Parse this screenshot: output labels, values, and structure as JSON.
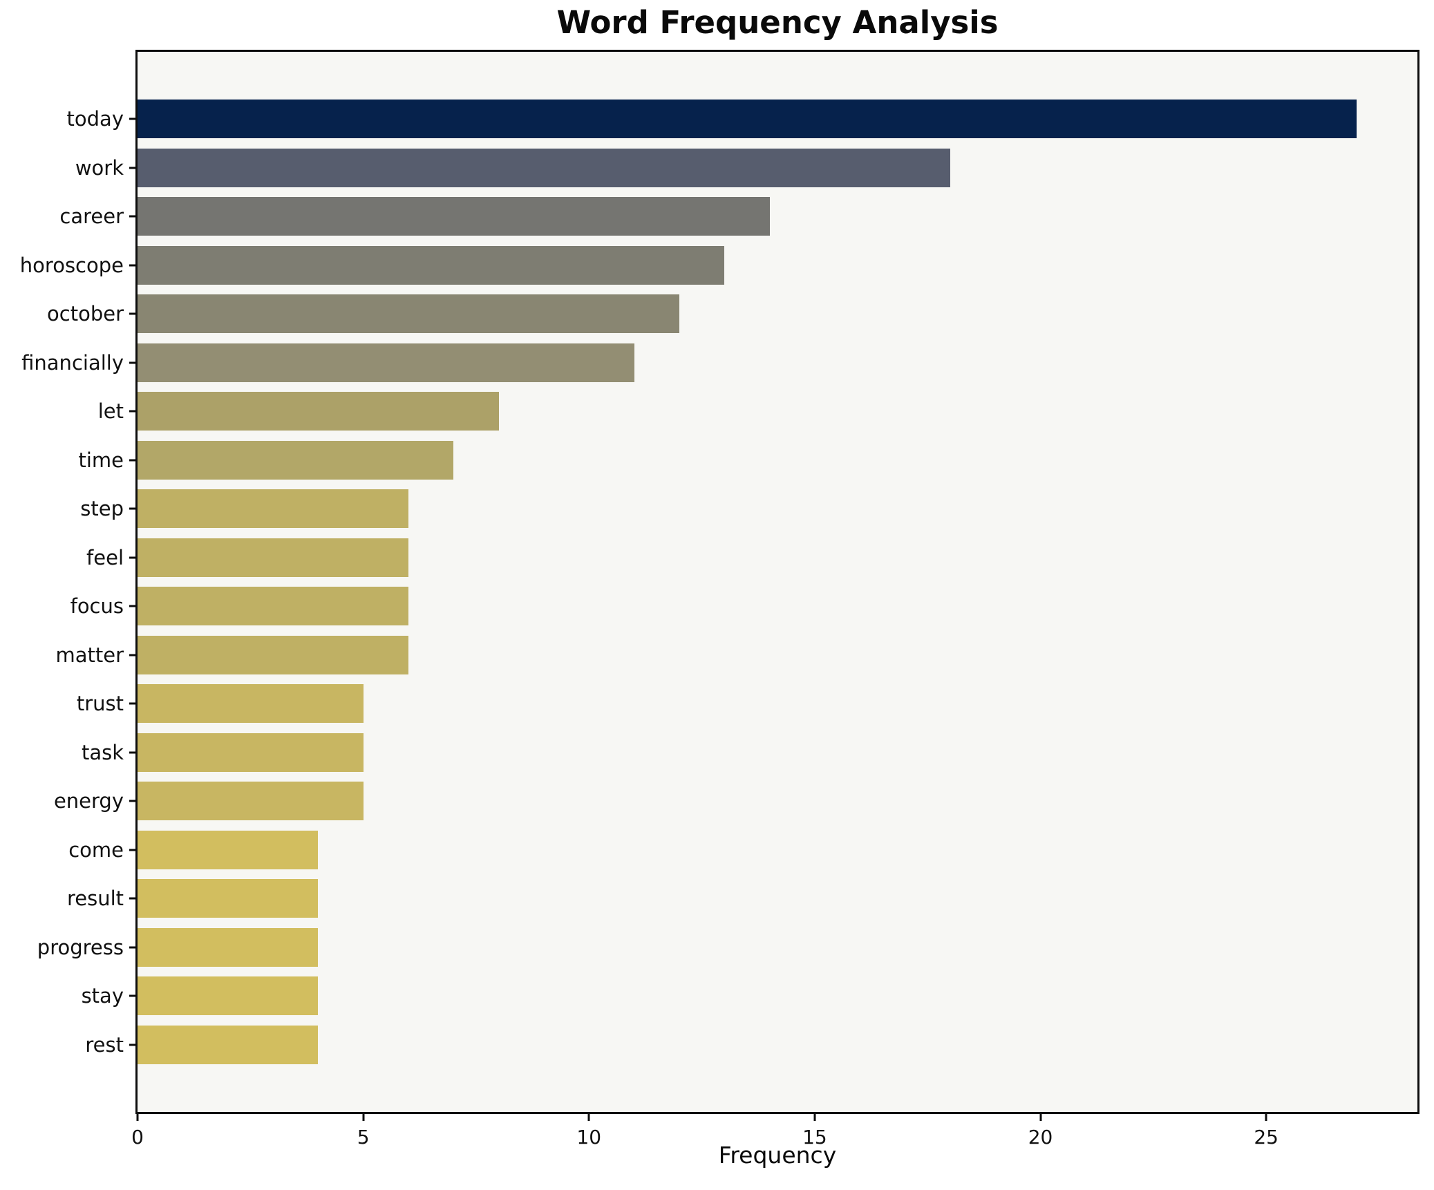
{
  "header": {
    "title": "Word Frequency Analysis"
  },
  "chart_data": {
    "type": "bar",
    "orientation": "horizontal",
    "title": "Word Frequency Analysis",
    "xlabel": "Frequency",
    "ylabel": "",
    "xlim": [
      0,
      28.35
    ],
    "xticks": [
      0,
      5,
      10,
      15,
      20,
      25
    ],
    "grid": false,
    "legend": false,
    "plot_background": "#f7f7f4",
    "spine_color": "#0d0d0d",
    "categories": [
      "today",
      "work",
      "career",
      "horoscope",
      "october",
      "financially",
      "let",
      "time",
      "step",
      "feel",
      "focus",
      "matter",
      "trust",
      "task",
      "energy",
      "come",
      "result",
      "progress",
      "stay",
      "rest"
    ],
    "values": [
      27,
      18,
      14,
      13,
      12,
      11,
      8,
      7,
      6,
      6,
      6,
      6,
      5,
      5,
      5,
      4,
      4,
      4,
      4,
      4
    ],
    "bar_colors": [
      "#06224c",
      "#575d6e",
      "#757571",
      "#7e7d72",
      "#898672",
      "#938e73",
      "#aca168",
      "#b2a768",
      "#bfb064",
      "#bfb064",
      "#bfb064",
      "#bfb064",
      "#c8b662",
      "#c8b662",
      "#c8b662",
      "#d2be5f",
      "#d2be5f",
      "#d2be5f",
      "#d2be5f",
      "#d2be5f"
    ]
  }
}
